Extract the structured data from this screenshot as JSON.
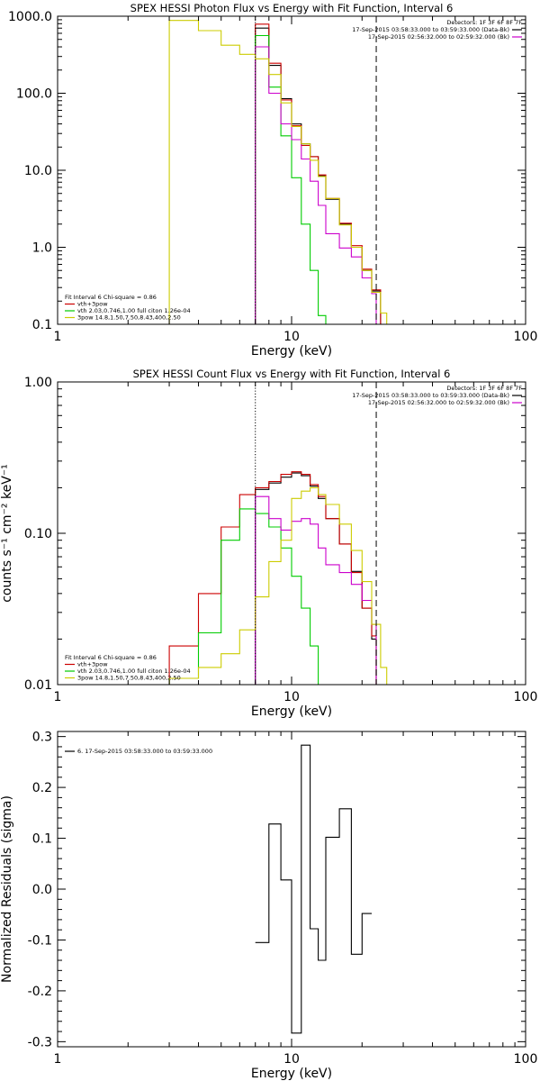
{
  "chart_data": [
    {
      "type": "line",
      "title": "SPEX HESSI Photon Flux vs Energy with Fit Function, Interval 6",
      "xlabel": "Energy  (keV)",
      "ylabel": "",
      "x_scale": "log",
      "y_scale": "log",
      "xlim": [
        1,
        100
      ],
      "ylim": [
        0.1,
        1000
      ],
      "xticks": [
        {
          "value": 1,
          "label": "1"
        },
        {
          "value": 10,
          "label": "10"
        },
        {
          "value": 100,
          "label": "100"
        }
      ],
      "yticks": [
        {
          "value": 0.1,
          "label": "0.1"
        },
        {
          "value": 1,
          "label": "1.0"
        },
        {
          "value": 10,
          "label": "10.0"
        },
        {
          "value": 100,
          "label": "100.0"
        },
        {
          "value": 1000,
          "label": "1000.0"
        }
      ],
      "vlines": [
        {
          "x": 7.0,
          "style": "dotted",
          "color": "#000000"
        },
        {
          "x": 23.0,
          "style": "dashed",
          "color": "#000000"
        }
      ],
      "header_lines": [
        "Detectors: 1F 3F 6F 8F 7F",
        "17-Sep-2015 03:58:33.000 to 03:59:33.000 (Data-Bk)",
        "17-Sep-2015 02:56:32.000 to 02:59:32.000 (Bk)"
      ],
      "header_markers": [
        "",
        "#000000",
        "#cc00cc"
      ],
      "legend_lines": [
        "Fit Interval  6    Chi-square = 0.86",
        "vth+3pow",
        "vth 2.03,0.746,1.00  full citon 1.26e-04",
        "3pow 14.8,1.50,7.50,8.43,400,2.50"
      ],
      "legend_markers": [
        "",
        "#cc0000",
        "#00cc00",
        "#cccc00"
      ],
      "legend_position": "bottom-left",
      "series": [
        {
          "color": "#000000",
          "edges": [
            7.0,
            8.0,
            9.0,
            10.0,
            11.0,
            12.0,
            13.0,
            14.0,
            16.0,
            18.0,
            20.0,
            22.0,
            24.0
          ],
          "values": [
            700,
            230,
            85,
            40,
            22,
            15,
            8.5,
            4.2,
            2.0,
            1.0,
            0.5,
            0.27
          ]
        },
        {
          "color": "#cc0000",
          "edges": [
            7.0,
            8.0,
            9.0,
            10.0,
            11.0,
            12.0,
            13.0,
            14.0,
            16.0,
            18.0,
            20.0,
            22.0,
            24.0
          ],
          "values": [
            790,
            245,
            82,
            38,
            21,
            15,
            8.7,
            4.3,
            2.05,
            1.05,
            0.52,
            0.28
          ]
        },
        {
          "color": "#00cc00",
          "edges": [
            7.0,
            8.0,
            9.0,
            10.0,
            11.0,
            12.0,
            13.0,
            14.0
          ],
          "values": [
            560,
            120,
            28,
            8.0,
            2.0,
            0.5,
            0.13
          ]
        },
        {
          "color": "#cc00cc",
          "edges": [
            7.0,
            8.0,
            9.0,
            10.0,
            11.0,
            12.0,
            13.0,
            14.0,
            16.0,
            18.0,
            20.0,
            22.0,
            23.0
          ],
          "values": [
            400,
            100,
            40,
            25,
            14,
            7.2,
            3.5,
            1.5,
            0.98,
            0.75,
            0.4,
            0.25
          ]
        },
        {
          "color": "#cccc00",
          "edges": [
            3.0,
            4.0,
            5.0,
            6.0,
            7.0,
            8.0,
            9.0,
            10.0,
            11.0,
            12.0,
            13.0,
            14.0,
            16.0,
            18.0,
            20.0,
            22.0,
            24.0,
            25.5
          ],
          "values": [
            880,
            650,
            420,
            320,
            280,
            175,
            75,
            37,
            22,
            13.5,
            8.3,
            4.3,
            1.95,
            1.0,
            0.5,
            0.26,
            0.14
          ]
        }
      ]
    },
    {
      "type": "line",
      "title": "SPEX HESSI Count Flux vs Energy with Fit Function, Interval 6",
      "xlabel": "Energy  (keV)",
      "ylabel": "counts s⁻¹ cm⁻² keV⁻¹",
      "x_scale": "log",
      "y_scale": "log",
      "xlim": [
        1,
        100
      ],
      "ylim": [
        0.01,
        1.0
      ],
      "xticks": [
        {
          "value": 1,
          "label": "1"
        },
        {
          "value": 10,
          "label": "10"
        },
        {
          "value": 100,
          "label": "100"
        }
      ],
      "yticks": [
        {
          "value": 0.01,
          "label": "0.01"
        },
        {
          "value": 0.1,
          "label": "0.10"
        },
        {
          "value": 1,
          "label": "1.00"
        }
      ],
      "vlines": [
        {
          "x": 7.0,
          "style": "dotted",
          "color": "#000000"
        },
        {
          "x": 23.0,
          "style": "dashed",
          "color": "#000000"
        }
      ],
      "header_lines": [
        "Detectors: 1F 3F 6F 8F 7F",
        "17-Sep-2015 03:58:33.000 to 03:59:33.000 (Data-Bk)",
        "17-Sep-2015 02:56:32.000 to 02:59:32.000 (Bk)"
      ],
      "header_markers": [
        "",
        "#000000",
        "#cc00cc"
      ],
      "legend_lines": [
        "Fit Interval  6    Chi-square = 0.86",
        "vth+3pow",
        "vth 2.03,0.746,1.00  full citon 1.26e-04",
        "3pow 14.8,1.50,7.50,8.43,400,2.50"
      ],
      "legend_markers": [
        "",
        "#cc0000",
        "#00cc00",
        "#cccc00"
      ],
      "legend_position": "bottom-left",
      "series": [
        {
          "color": "#000000",
          "edges": [
            7.0,
            8.0,
            9.0,
            10.0,
            11.0,
            12.0,
            13.0,
            14.0,
            16.0,
            18.0,
            20.0,
            22.0,
            23.0
          ],
          "values": [
            0.195,
            0.215,
            0.235,
            0.25,
            0.24,
            0.205,
            0.17,
            0.125,
            0.085,
            0.056,
            0.032,
            0.02
          ]
        },
        {
          "color": "#cc0000",
          "edges": [
            3.0,
            4.0,
            5.0,
            6.0,
            7.0,
            8.0,
            9.0,
            10.0,
            11.0,
            12.0,
            13.0,
            14.0,
            16.0,
            18.0,
            20.0,
            22.0,
            23.0
          ],
          "values": [
            0.018,
            0.04,
            0.11,
            0.18,
            0.2,
            0.22,
            0.245,
            0.255,
            0.245,
            0.21,
            0.175,
            0.125,
            0.085,
            0.055,
            0.032,
            0.021
          ]
        },
        {
          "color": "#00cc00",
          "edges": [
            3.0,
            4.0,
            5.0,
            6.0,
            7.0,
            8.0,
            9.0,
            10.0,
            11.0,
            12.0,
            13.0
          ],
          "values": [
            0.011,
            0.022,
            0.09,
            0.145,
            0.135,
            0.11,
            0.08,
            0.052,
            0.032,
            0.018
          ]
        },
        {
          "color": "#cc00cc",
          "edges": [
            7.0,
            8.0,
            9.0,
            10.0,
            11.0,
            12.0,
            13.0,
            14.0,
            16.0,
            18.0,
            20.0,
            22.0,
            23.0
          ],
          "values": [
            0.175,
            0.125,
            0.105,
            0.12,
            0.125,
            0.115,
            0.08,
            0.062,
            0.055,
            0.046,
            0.036,
            0.025
          ]
        },
        {
          "color": "#cccc00",
          "edges": [
            3.0,
            4.0,
            5.0,
            6.0,
            7.0,
            8.0,
            9.0,
            10.0,
            11.0,
            12.0,
            13.0,
            14.0,
            16.0,
            18.0,
            20.0,
            22.0,
            24.0,
            25.5
          ],
          "values": [
            0.011,
            0.013,
            0.016,
            0.023,
            0.038,
            0.065,
            0.09,
            0.17,
            0.19,
            0.2,
            0.18,
            0.155,
            0.115,
            0.077,
            0.048,
            0.025,
            0.013
          ]
        }
      ]
    },
    {
      "type": "line",
      "title": "",
      "xlabel": "Energy  (keV)",
      "ylabel": "Normalized Residuals (sigma)",
      "x_scale": "log",
      "y_scale": "linear",
      "xlim": [
        1,
        100
      ],
      "ylim": [
        -0.31,
        0.31
      ],
      "xticks": [
        {
          "value": 1,
          "label": "1"
        },
        {
          "value": 10,
          "label": "10"
        },
        {
          "value": 100,
          "label": "100"
        }
      ],
      "yticks": [
        {
          "value": -0.3,
          "label": "-0.3"
        },
        {
          "value": -0.2,
          "label": "-0.2"
        },
        {
          "value": -0.1,
          "label": "-0.1"
        },
        {
          "value": 0.0,
          "label": "0.0"
        },
        {
          "value": 0.1,
          "label": "0.1"
        },
        {
          "value": 0.2,
          "label": "0.2"
        },
        {
          "value": 0.3,
          "label": "0.3"
        }
      ],
      "vlines": [],
      "header_lines": [],
      "header_markers": [],
      "legend_lines": [
        "6. 17-Sep-2015 03:58:33.000 to 03:59:33.000"
      ],
      "legend_markers": [
        "#000000"
      ],
      "legend_position": "top-left",
      "series": [
        {
          "color": "#000000",
          "edges": [
            7.0,
            8.0,
            9.0,
            10.0,
            11.0,
            12.0,
            13.0,
            14.0,
            16.0,
            18.0,
            20.0,
            22.0
          ],
          "values": [
            -0.105,
            0.128,
            0.018,
            -0.283,
            0.283,
            -0.078,
            -0.14,
            0.102,
            0.158,
            -0.128,
            -0.048
          ]
        }
      ]
    }
  ]
}
